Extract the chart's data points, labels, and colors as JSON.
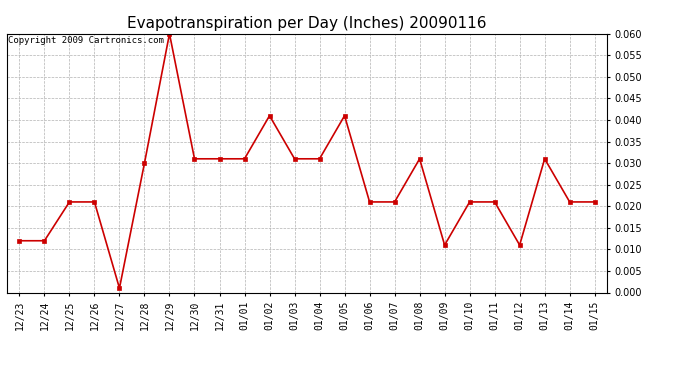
{
  "title": "Evapotranspiration per Day (Inches) 20090116",
  "copyright": "Copyright 2009 Cartronics.com",
  "labels": [
    "12/23",
    "12/24",
    "12/25",
    "12/26",
    "12/27",
    "12/28",
    "12/29",
    "12/30",
    "12/31",
    "01/01",
    "01/02",
    "01/03",
    "01/04",
    "01/05",
    "01/06",
    "01/07",
    "01/08",
    "01/09",
    "01/10",
    "01/11",
    "01/12",
    "01/13",
    "01/14",
    "01/15"
  ],
  "values": [
    0.012,
    0.012,
    0.021,
    0.021,
    0.001,
    0.03,
    0.06,
    0.031,
    0.031,
    0.031,
    0.041,
    0.031,
    0.031,
    0.041,
    0.021,
    0.021,
    0.031,
    0.011,
    0.021,
    0.021,
    0.011,
    0.031,
    0.021,
    0.021
  ],
  "ylim": [
    0.0,
    0.06
  ],
  "yticks": [
    0.0,
    0.005,
    0.01,
    0.015,
    0.02,
    0.025,
    0.03,
    0.035,
    0.04,
    0.045,
    0.05,
    0.055,
    0.06
  ],
  "line_color": "#cc0000",
  "marker": "s",
  "marker_size": 3,
  "bg_color": "#ffffff",
  "grid_color": "#aaaaaa",
  "title_fontsize": 11,
  "copyright_fontsize": 6.5,
  "tick_fontsize": 7
}
